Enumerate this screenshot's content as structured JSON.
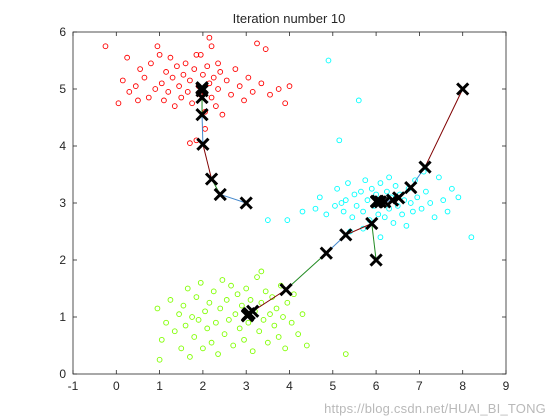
{
  "watermark": "https://blog.csdn.net/HUAI_BI_TONG",
  "chart_data": {
    "type": "scatter",
    "title": "Iteration number 10",
    "xlabel": "",
    "ylabel": "",
    "xlim": [
      -1,
      9
    ],
    "ylim": [
      0,
      6
    ],
    "xticks": [
      "-1",
      "0",
      "1",
      "2",
      "3",
      "4",
      "5",
      "6",
      "7",
      "8",
      "9"
    ],
    "yticks": [
      "0",
      "1",
      "2",
      "3",
      "4",
      "5",
      "6"
    ],
    "grid": false,
    "legend": "none",
    "clusters": [
      {
        "color": "#ff0000",
        "points": [
          [
            -0.25,
            5.75
          ],
          [
            0.05,
            4.75
          ],
          [
            0.15,
            5.15
          ],
          [
            0.25,
            5.55
          ],
          [
            0.3,
            4.95
          ],
          [
            0.45,
            5.05
          ],
          [
            0.5,
            4.8
          ],
          [
            0.55,
            5.35
          ],
          [
            0.65,
            5.2
          ],
          [
            0.75,
            4.85
          ],
          [
            0.8,
            5.45
          ],
          [
            0.9,
            5.0
          ],
          [
            0.95,
            5.75
          ],
          [
            1.0,
            5.6
          ],
          [
            1.05,
            5.1
          ],
          [
            1.1,
            4.8
          ],
          [
            1.15,
            5.3
          ],
          [
            1.2,
            4.95
          ],
          [
            1.25,
            5.55
          ],
          [
            1.3,
            5.2
          ],
          [
            1.35,
            4.7
          ],
          [
            1.4,
            5.4
          ],
          [
            1.45,
            5.05
          ],
          [
            1.5,
            4.85
          ],
          [
            1.55,
            5.25
          ],
          [
            1.6,
            5.45
          ],
          [
            1.65,
            4.95
          ],
          [
            1.7,
            5.15
          ],
          [
            1.75,
            4.75
          ],
          [
            1.8,
            5.35
          ],
          [
            1.85,
            5.6
          ],
          [
            1.9,
            5.05
          ],
          [
            1.95,
            4.9
          ],
          [
            2.0,
            5.25
          ],
          [
            2.05,
            4.6
          ],
          [
            2.1,
            5.4
          ],
          [
            2.15,
            5.1
          ],
          [
            2.2,
            4.85
          ],
          [
            2.25,
            5.2
          ],
          [
            2.3,
            4.7
          ],
          [
            2.35,
            5.0
          ],
          [
            2.4,
            5.3
          ],
          [
            2.45,
            4.55
          ],
          [
            2.55,
            5.15
          ],
          [
            2.65,
            4.9
          ],
          [
            2.75,
            5.35
          ],
          [
            2.85,
            5.05
          ],
          [
            2.95,
            4.8
          ],
          [
            3.05,
            5.2
          ],
          [
            3.15,
            4.95
          ],
          [
            3.25,
            5.8
          ],
          [
            3.35,
            5.1
          ],
          [
            3.45,
            5.7
          ],
          [
            3.55,
            4.9
          ],
          [
            3.75,
            5.0
          ],
          [
            3.9,
            4.75
          ],
          [
            4.0,
            5.05
          ],
          [
            1.7,
            4.05
          ],
          [
            2.05,
            4.3
          ],
          [
            1.85,
            4.1
          ],
          [
            2.2,
            5.75
          ],
          [
            1.95,
            5.6
          ],
          [
            2.15,
            5.9
          ],
          [
            2.35,
            5.45
          ]
        ]
      },
      {
        "color": "#00ffff",
        "points": [
          [
            3.5,
            2.7
          ],
          [
            3.95,
            2.7
          ],
          [
            4.3,
            2.85
          ],
          [
            4.6,
            2.9
          ],
          [
            4.7,
            3.1
          ],
          [
            4.85,
            2.8
          ],
          [
            4.9,
            5.5
          ],
          [
            5.05,
            2.95
          ],
          [
            5.1,
            3.25
          ],
          [
            5.15,
            4.1
          ],
          [
            5.25,
            2.85
          ],
          [
            5.3,
            3.05
          ],
          [
            5.35,
            3.35
          ],
          [
            5.45,
            2.75
          ],
          [
            5.5,
            3.15
          ],
          [
            5.55,
            2.95
          ],
          [
            5.6,
            4.8
          ],
          [
            5.65,
            3.2
          ],
          [
            5.7,
            2.85
          ],
          [
            5.75,
            3.4
          ],
          [
            5.8,
            3.05
          ],
          [
            5.85,
            2.7
          ],
          [
            5.9,
            3.25
          ],
          [
            5.95,
            2.95
          ],
          [
            6.0,
            3.15
          ],
          [
            6.05,
            2.8
          ],
          [
            6.1,
            3.35
          ],
          [
            6.15,
            3.0
          ],
          [
            6.2,
            2.75
          ],
          [
            6.25,
            3.2
          ],
          [
            6.3,
            2.9
          ],
          [
            6.35,
            3.1
          ],
          [
            6.4,
            2.65
          ],
          [
            6.45,
            3.3
          ],
          [
            6.5,
            2.95
          ],
          [
            6.55,
            3.15
          ],
          [
            6.6,
            2.8
          ],
          [
            6.65,
            3.05
          ],
          [
            6.7,
            2.6
          ],
          [
            6.75,
            3.25
          ],
          [
            6.8,
            3.0
          ],
          [
            6.85,
            2.85
          ],
          [
            6.9,
            3.4
          ],
          [
            6.95,
            3.1
          ],
          [
            7.05,
            2.9
          ],
          [
            7.15,
            3.2
          ],
          [
            7.25,
            3.0
          ],
          [
            7.35,
            2.75
          ],
          [
            7.45,
            3.45
          ],
          [
            7.55,
            3.05
          ],
          [
            7.65,
            2.85
          ],
          [
            7.75,
            3.25
          ],
          [
            7.9,
            3.1
          ],
          [
            8.2,
            2.4
          ],
          [
            5.7,
            2.55
          ],
          [
            6.1,
            2.4
          ],
          [
            5.4,
            2.5
          ],
          [
            6.3,
            3.45
          ],
          [
            7.1,
            3.55
          ],
          [
            5.2,
            3.0
          ]
        ]
      },
      {
        "color": "#80ff00",
        "points": [
          [
            0.95,
            1.15
          ],
          [
            1.0,
            0.25
          ],
          [
            1.05,
            0.6
          ],
          [
            1.15,
            0.9
          ],
          [
            1.25,
            1.3
          ],
          [
            1.35,
            0.75
          ],
          [
            1.45,
            1.05
          ],
          [
            1.5,
            0.45
          ],
          [
            1.55,
            1.2
          ],
          [
            1.6,
            0.85
          ],
          [
            1.65,
            1.5
          ],
          [
            1.7,
            0.3
          ],
          [
            1.75,
            1.0
          ],
          [
            1.8,
            0.65
          ],
          [
            1.85,
            1.35
          ],
          [
            1.9,
            0.95
          ],
          [
            1.95,
            1.6
          ],
          [
            2.0,
            0.45
          ],
          [
            2.05,
            1.1
          ],
          [
            2.1,
            0.8
          ],
          [
            2.15,
            1.25
          ],
          [
            2.2,
            0.55
          ],
          [
            2.25,
            1.45
          ],
          [
            2.3,
            0.9
          ],
          [
            2.35,
            0.35
          ],
          [
            2.4,
            1.15
          ],
          [
            2.45,
            1.65
          ],
          [
            2.5,
            0.7
          ],
          [
            2.55,
            1.3
          ],
          [
            2.6,
            0.95
          ],
          [
            2.65,
            1.55
          ],
          [
            2.7,
            0.5
          ],
          [
            2.75,
            1.05
          ],
          [
            2.8,
            1.4
          ],
          [
            2.85,
            0.8
          ],
          [
            2.9,
            1.2
          ],
          [
            2.95,
            0.6
          ],
          [
            3.0,
            1.5
          ],
          [
            3.05,
            0.9
          ],
          [
            3.1,
            1.3
          ],
          [
            3.15,
            0.4
          ],
          [
            3.2,
            1.1
          ],
          [
            3.25,
            1.7
          ],
          [
            3.3,
            0.75
          ],
          [
            3.35,
            1.25
          ],
          [
            3.4,
            0.95
          ],
          [
            3.45,
            1.45
          ],
          [
            3.5,
            0.55
          ],
          [
            3.55,
            1.05
          ],
          [
            3.6,
            1.35
          ],
          [
            3.65,
            0.85
          ],
          [
            3.7,
            1.15
          ],
          [
            3.75,
            0.65
          ],
          [
            3.8,
            1.55
          ],
          [
            3.85,
            1.0
          ],
          [
            3.9,
            0.45
          ],
          [
            3.95,
            1.25
          ],
          [
            4.05,
            0.9
          ],
          [
            4.1,
            1.4
          ],
          [
            4.2,
            0.7
          ],
          [
            4.3,
            1.05
          ],
          [
            4.4,
            0.5
          ],
          [
            5.3,
            0.35
          ],
          [
            3.35,
            1.8
          ]
        ]
      }
    ],
    "centroid_paths": [
      {
        "color": "#800000",
        "points": [
          [
            8.0,
            5.0
          ],
          [
            7.13,
            3.63
          ],
          [
            6.8,
            3.27
          ],
          [
            6.52,
            3.09
          ],
          [
            6.38,
            3.05
          ],
          [
            6.2,
            3.02
          ],
          [
            6.1,
            3.02
          ],
          [
            6.04,
            3.03
          ],
          [
            6.02,
            3.02
          ],
          [
            6.01,
            3.03
          ],
          [
            6.01,
            3.02
          ]
        ]
      },
      {
        "color": "#4488cc",
        "points": [
          [
            3.0,
            3.0
          ],
          [
            2.4,
            3.15
          ],
          [
            2.2,
            3.42
          ],
          [
            2.0,
            4.03
          ],
          [
            1.98,
            4.55
          ],
          [
            1.98,
            4.85
          ],
          [
            1.98,
            4.97
          ],
          [
            1.98,
            5.01
          ],
          [
            1.98,
            5.02
          ],
          [
            1.98,
            5.02
          ],
          [
            1.98,
            5.02
          ]
        ]
      },
      {
        "color": "#556b2f",
        "points": [
          [
            6.0,
            2.0
          ],
          [
            5.9,
            2.64
          ],
          [
            5.3,
            2.44
          ],
          [
            4.85,
            2.12
          ],
          [
            3.92,
            1.48
          ],
          [
            3.15,
            1.1
          ],
          [
            3.07,
            1.06
          ],
          [
            3.05,
            1.05
          ],
          [
            3.04,
            1.04
          ],
          [
            3.03,
            1.03
          ],
          [
            3.03,
            1.02
          ]
        ]
      }
    ],
    "centroid_path_segment_colors": [
      "#800000",
      "#4488cc",
      "#228b22"
    ]
  }
}
